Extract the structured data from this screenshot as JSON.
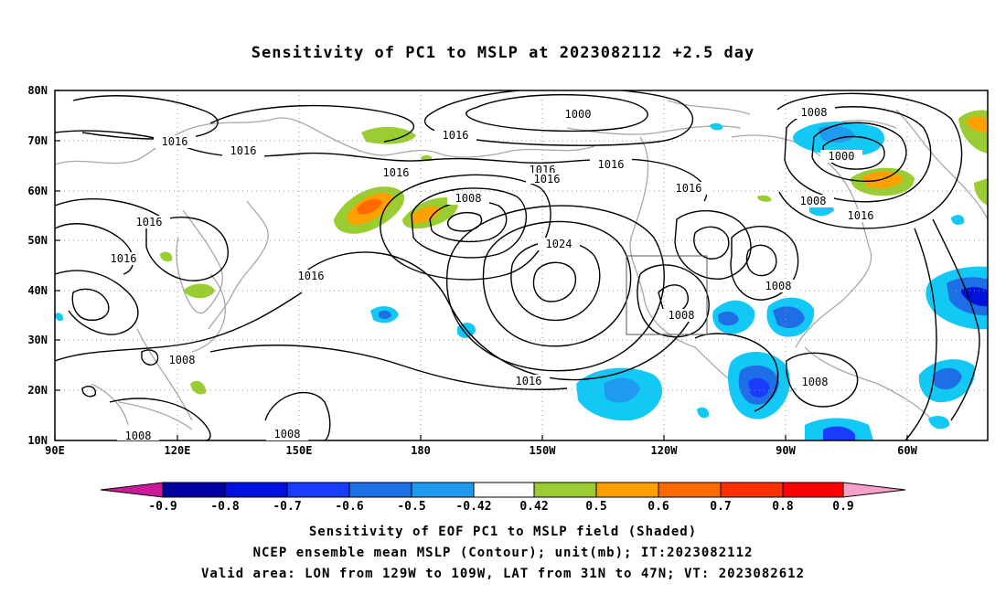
{
  "title": "Sensitivity of PC1 to MSLP at 2023082112 +2.5 day",
  "lat_labels": [
    "80N",
    "70N",
    "60N",
    "50N",
    "40N",
    "30N",
    "20N",
    "10N"
  ],
  "lon_labels": [
    "90E",
    "120E",
    "150E",
    "180",
    "150W",
    "120W",
    "90W",
    "60W"
  ],
  "colorbar": {
    "labels": [
      "-0.9",
      "-0.8",
      "-0.7",
      "-0.6",
      "-0.5",
      "-0.42",
      "0.42",
      "0.5",
      "0.6",
      "0.7",
      "0.8",
      "0.9"
    ],
    "colors": [
      "#cc1a99",
      "#0000a0",
      "#0010dd",
      "#1a3cff",
      "#1e6ee6",
      "#1e9af0",
      "#12c8f5",
      "#ffffff",
      "#9acd32",
      "#ffa000",
      "#ff6a00",
      "#ff3000",
      "#ff0000",
      "#f8a0c8"
    ]
  },
  "contour_labels": {
    "c1000a": "1000",
    "c1000b": "1000",
    "c1008a": "1008",
    "c1008b": "1008",
    "c1008c": "1008",
    "c1008d": "1008",
    "c1008e": "1008",
    "c1008f": "1008",
    "c1008g": "1008",
    "c1008h": "1008",
    "c1008i": "1008",
    "c1016a": "1016",
    "c1016b": "1016",
    "c1016c": "1016",
    "c1016d": "1016",
    "c1016e": "1016",
    "c1016f": "1016",
    "c1016g": "1016",
    "c1016h": "1016",
    "c1016i": "1016",
    "c1016j": "1016",
    "c1016k": "1016",
    "c1016l": "1016",
    "c1016m": "1016",
    "c1024": "1024"
  },
  "captions": {
    "line1": "Sensitivity of EOF PC1 to MSLP field (Shaded)",
    "line2": "NCEP ensemble mean MSLP (Contour); unit(mb); IT:2023082112",
    "line3": "Valid area: LON from 129W to 109W, LAT from 31N to 47N; VT: 2023082612"
  },
  "valid_area": {
    "lon_from": "129W",
    "lon_to": "109W",
    "lat_from": "31N",
    "lat_to": "47N"
  }
}
